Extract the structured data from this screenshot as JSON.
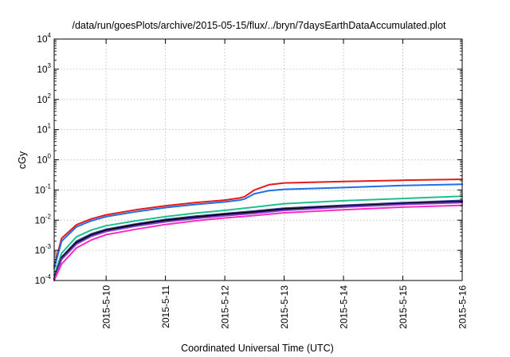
{
  "chart_data": {
    "type": "line",
    "title": "/data/run/goesPlots/archive/2015-05-15/flux/../bryn/7daysEarthDataAccumulated.plot",
    "xlabel": "Coordinated Universal Time (UTC)",
    "ylabel": "cGy",
    "x_scale": "time",
    "y_scale": "log",
    "xlim": [
      "2015-05-09 03:00",
      "2015-05-16 00:00"
    ],
    "ylim": [
      0.0001,
      10000
    ],
    "x_ticks": [
      "2015-5-10",
      "2015-5-11",
      "2015-5-12",
      "2015-5-13",
      "2015-5-14",
      "2015-5-15",
      "2015-5-16"
    ],
    "y_ticks": [
      {
        "base": "10",
        "exp": "-4",
        "value": 0.0001
      },
      {
        "base": "10",
        "exp": "-3",
        "value": 0.001
      },
      {
        "base": "10",
        "exp": "-2",
        "value": 0.01
      },
      {
        "base": "10",
        "exp": "-1",
        "value": 0.1
      },
      {
        "base": "10",
        "exp": "0",
        "value": 1
      },
      {
        "base": "10",
        "exp": "1",
        "value": 10
      },
      {
        "base": "10",
        "exp": "2",
        "value": 100
      },
      {
        "base": "10",
        "exp": "3",
        "value": 1000
      },
      {
        "base": "10",
        "exp": "4",
        "value": 10000
      }
    ],
    "grid": true,
    "series": [
      {
        "color": "#e41a1c",
        "x": [
          "2015-05-09 03:00",
          "2015-05-09 06:00",
          "2015-05-09 12:00",
          "2015-05-09 18:00",
          "2015-05-10 00:00",
          "2015-05-10 12:00",
          "2015-05-11 00:00",
          "2015-05-11 12:00",
          "2015-05-12 00:00",
          "2015-05-12 06:00",
          "2015-05-12 08:00",
          "2015-05-12 12:00",
          "2015-05-12 18:00",
          "2015-05-13 00:00",
          "2015-05-14 00:00",
          "2015-05-15 00:00",
          "2015-05-16 00:00"
        ],
        "y": [
          0.0003,
          0.0025,
          0.007,
          0.011,
          0.015,
          0.022,
          0.03,
          0.038,
          0.046,
          0.054,
          0.06,
          0.1,
          0.15,
          0.17,
          0.19,
          0.21,
          0.225
        ]
      },
      {
        "color": "#1f6fe5",
        "x": [
          "2015-05-09 03:00",
          "2015-05-09 06:00",
          "2015-05-09 12:00",
          "2015-05-09 18:00",
          "2015-05-10 00:00",
          "2015-05-10 12:00",
          "2015-05-11 00:00",
          "2015-05-11 12:00",
          "2015-05-12 00:00",
          "2015-05-12 06:00",
          "2015-05-12 08:00",
          "2015-05-12 12:00",
          "2015-05-12 18:00",
          "2015-05-13 00:00",
          "2015-05-14 00:00",
          "2015-05-15 00:00",
          "2015-05-16 00:00"
        ],
        "y": [
          0.00025,
          0.002,
          0.006,
          0.0095,
          0.013,
          0.019,
          0.026,
          0.033,
          0.04,
          0.046,
          0.05,
          0.075,
          0.095,
          0.105,
          0.12,
          0.14,
          0.155
        ]
      },
      {
        "color": "#1fbf8f",
        "x": [
          "2015-05-09 03:00",
          "2015-05-09 06:00",
          "2015-05-09 12:00",
          "2015-05-09 18:00",
          "2015-05-10 00:00",
          "2015-05-10 12:00",
          "2015-05-11 00:00",
          "2015-05-11 12:00",
          "2015-05-12 00:00",
          "2015-05-12 12:00",
          "2015-05-13 00:00",
          "2015-05-14 00:00",
          "2015-05-15 00:00",
          "2015-05-16 00:00"
        ],
        "y": [
          0.00015,
          0.0008,
          0.0028,
          0.0047,
          0.0065,
          0.0095,
          0.013,
          0.017,
          0.021,
          0.027,
          0.035,
          0.044,
          0.052,
          0.062
        ]
      },
      {
        "color": "#3b3b8f",
        "x": [
          "2015-05-09 03:00",
          "2015-05-09 06:00",
          "2015-05-09 12:00",
          "2015-05-09 18:00",
          "2015-05-10 00:00",
          "2015-05-10 12:00",
          "2015-05-11 00:00",
          "2015-05-11 12:00",
          "2015-05-12 00:00",
          "2015-05-12 12:00",
          "2015-05-13 00:00",
          "2015-05-14 00:00",
          "2015-05-15 00:00",
          "2015-05-16 00:00"
        ],
        "y": [
          0.00012,
          0.0006,
          0.002,
          0.0035,
          0.005,
          0.0075,
          0.0105,
          0.0135,
          0.0165,
          0.02,
          0.025,
          0.031,
          0.038,
          0.045
        ]
      },
      {
        "color": "#000000",
        "x": [
          "2015-05-09 03:00",
          "2015-05-09 06:00",
          "2015-05-09 12:00",
          "2015-05-09 18:00",
          "2015-05-10 00:00",
          "2015-05-10 12:00",
          "2015-05-11 00:00",
          "2015-05-11 12:00",
          "2015-05-12 00:00",
          "2015-05-12 12:00",
          "2015-05-13 00:00",
          "2015-05-14 00:00",
          "2015-05-15 00:00",
          "2015-05-16 00:00"
        ],
        "y": [
          0.00011,
          0.00055,
          0.0018,
          0.0032,
          0.0046,
          0.007,
          0.0098,
          0.0125,
          0.0155,
          0.0185,
          0.023,
          0.029,
          0.035,
          0.041
        ]
      },
      {
        "color": "#7b3fd0",
        "x": [
          "2015-05-09 03:00",
          "2015-05-09 06:00",
          "2015-05-09 12:00",
          "2015-05-09 18:00",
          "2015-05-10 00:00",
          "2015-05-10 12:00",
          "2015-05-11 00:00",
          "2015-05-11 12:00",
          "2015-05-12 00:00",
          "2015-05-12 12:00",
          "2015-05-13 00:00",
          "2015-05-14 00:00",
          "2015-05-15 00:00",
          "2015-05-16 00:00"
        ],
        "y": [
          0.0001,
          0.0005,
          0.0016,
          0.0029,
          0.0042,
          0.0063,
          0.0088,
          0.0113,
          0.014,
          0.0168,
          0.021,
          0.027,
          0.033,
          0.038
        ]
      },
      {
        "color": "#ff2bc2",
        "x": [
          "2015-05-09 03:00",
          "2015-05-09 06:00",
          "2015-05-09 12:00",
          "2015-05-09 18:00",
          "2015-05-10 00:00",
          "2015-05-10 12:00",
          "2015-05-11 00:00",
          "2015-05-11 12:00",
          "2015-05-12 00:00",
          "2015-05-12 12:00",
          "2015-05-13 00:00",
          "2015-05-14 00:00",
          "2015-05-15 00:00",
          "2015-05-16 00:00"
        ],
        "y": [
          0.0001,
          0.00035,
          0.0012,
          0.0022,
          0.0033,
          0.005,
          0.0072,
          0.0095,
          0.0118,
          0.0142,
          0.0175,
          0.022,
          0.027,
          0.031
        ]
      }
    ]
  }
}
